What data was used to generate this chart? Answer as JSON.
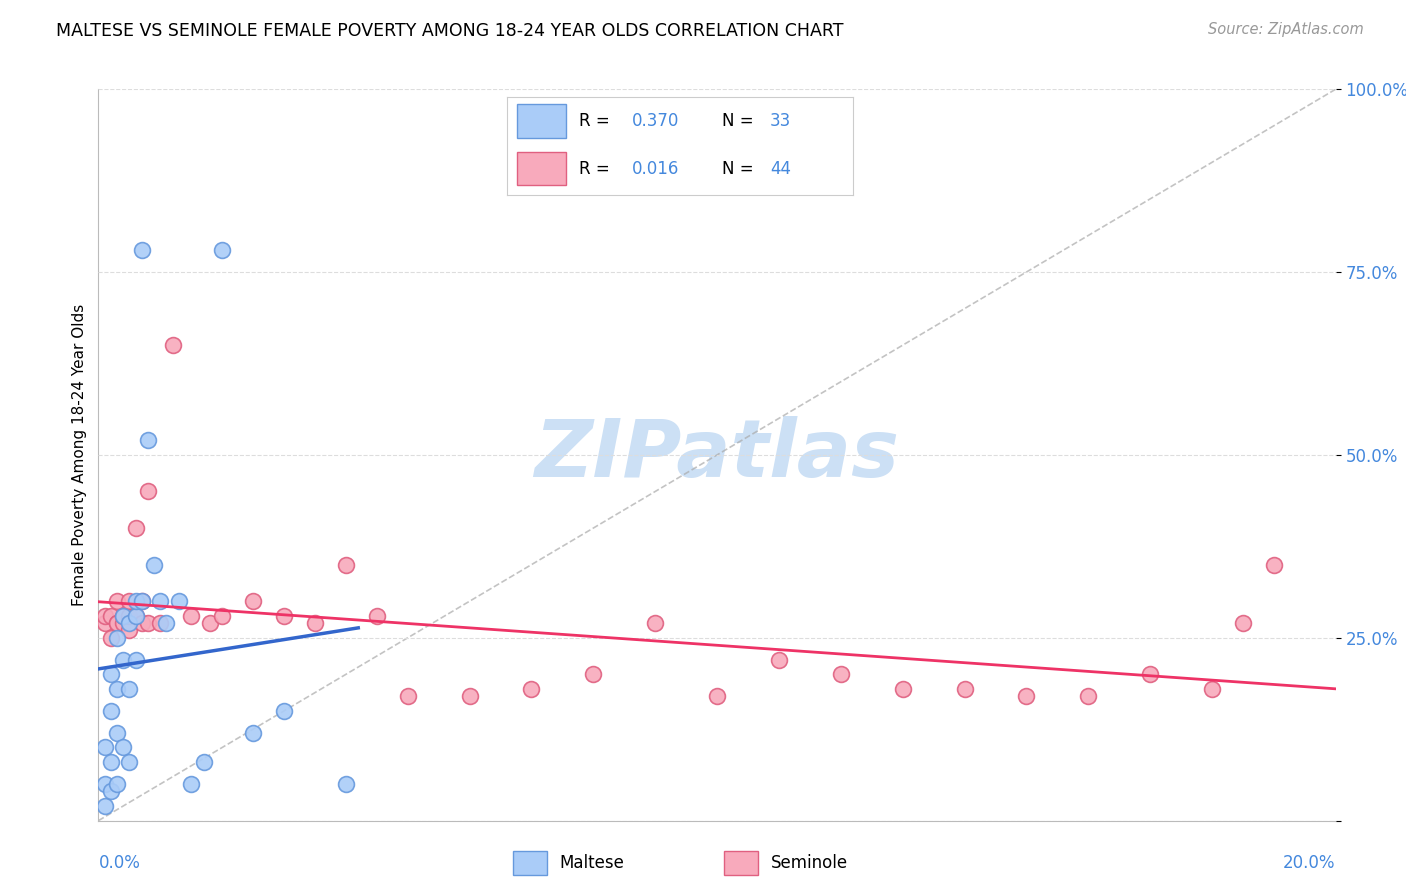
{
  "title": "MALTESE VS SEMINOLE FEMALE POVERTY AMONG 18-24 YEAR OLDS CORRELATION CHART",
  "source": "Source: ZipAtlas.com",
  "ylabel": "Female Poverty Among 18-24 Year Olds",
  "xlim": [
    0.0,
    0.2
  ],
  "ylim": [
    0.0,
    1.0
  ],
  "yticks": [
    0.0,
    0.25,
    0.5,
    0.75,
    1.0
  ],
  "ytick_labels": [
    "",
    "25.0%",
    "50.0%",
    "75.0%",
    "100.0%"
  ],
  "xtick_left": "0.0%",
  "xtick_right": "20.0%",
  "legend_r1": "R = 0.370",
  "legend_n1": "N = 33",
  "legend_r2": "R = 0.016",
  "legend_n2": "N = 44",
  "maltese_fill": "#aaccf8",
  "maltese_edge": "#6699dd",
  "seminole_fill": "#f8aabc",
  "seminole_edge": "#e06080",
  "line_maltese": "#3366cc",
  "line_seminole": "#ee3366",
  "grid_color": "#dddddd",
  "ref_line_color": "#aaaaaa",
  "watermark_color": "#cce0f5",
  "maltese_x": [
    0.001,
    0.001,
    0.001,
    0.002,
    0.002,
    0.002,
    0.002,
    0.003,
    0.003,
    0.003,
    0.003,
    0.004,
    0.004,
    0.004,
    0.005,
    0.005,
    0.005,
    0.006,
    0.006,
    0.006,
    0.007,
    0.007,
    0.008,
    0.009,
    0.01,
    0.011,
    0.013,
    0.015,
    0.017,
    0.02,
    0.025,
    0.03,
    0.04
  ],
  "maltese_y": [
    0.02,
    0.05,
    0.1,
    0.04,
    0.08,
    0.15,
    0.2,
    0.05,
    0.12,
    0.18,
    0.25,
    0.1,
    0.22,
    0.28,
    0.08,
    0.18,
    0.27,
    0.22,
    0.28,
    0.3,
    0.78,
    0.3,
    0.52,
    0.35,
    0.3,
    0.27,
    0.3,
    0.05,
    0.08,
    0.78,
    0.12,
    0.15,
    0.05
  ],
  "seminole_x": [
    0.001,
    0.001,
    0.002,
    0.002,
    0.003,
    0.003,
    0.003,
    0.004,
    0.004,
    0.005,
    0.005,
    0.005,
    0.006,
    0.006,
    0.007,
    0.007,
    0.008,
    0.008,
    0.01,
    0.012,
    0.015,
    0.018,
    0.02,
    0.025,
    0.03,
    0.035,
    0.04,
    0.045,
    0.05,
    0.06,
    0.07,
    0.08,
    0.09,
    0.1,
    0.11,
    0.12,
    0.13,
    0.14,
    0.15,
    0.16,
    0.17,
    0.18,
    0.185,
    0.19
  ],
  "seminole_y": [
    0.27,
    0.28,
    0.25,
    0.28,
    0.27,
    0.27,
    0.3,
    0.27,
    0.28,
    0.26,
    0.28,
    0.3,
    0.28,
    0.4,
    0.27,
    0.3,
    0.27,
    0.45,
    0.27,
    0.65,
    0.28,
    0.27,
    0.28,
    0.3,
    0.28,
    0.27,
    0.35,
    0.28,
    0.17,
    0.17,
    0.18,
    0.2,
    0.27,
    0.17,
    0.22,
    0.2,
    0.18,
    0.18,
    0.17,
    0.17,
    0.2,
    0.18,
    0.27,
    0.35
  ]
}
